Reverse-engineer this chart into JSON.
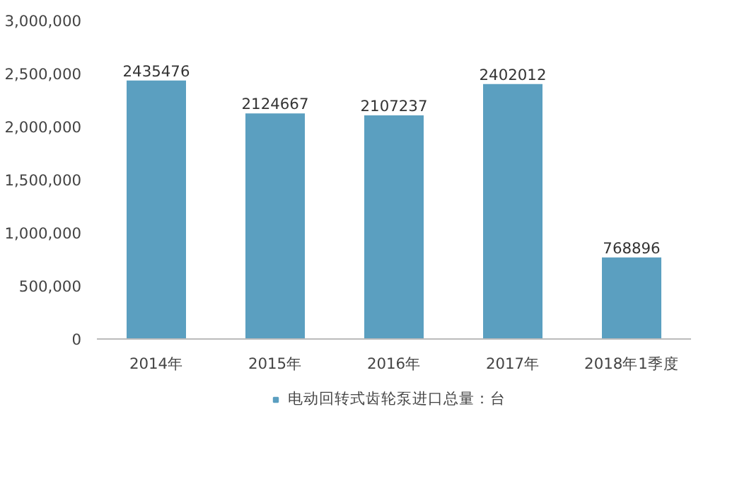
{
  "chart_data": {
    "type": "bar",
    "categories": [
      "2014年",
      "2015年",
      "2016年",
      "2017年",
      "2018年1季度"
    ],
    "series": [
      {
        "name": "电动回转式齿轮泵进口总量：台",
        "color": "#5b9fc0",
        "values": [
          2435476,
          2124667,
          2107237,
          2402012,
          768896
        ]
      }
    ],
    "ylim": [
      0,
      3000000
    ],
    "yticks": [
      {
        "value": 0,
        "label": "0"
      },
      {
        "value": 500000,
        "label": "500,000"
      },
      {
        "value": 1000000,
        "label": "1,000,000"
      },
      {
        "value": 1500000,
        "label": "1,500,000"
      },
      {
        "value": 2000000,
        "label": "2,000,000"
      },
      {
        "value": 2500000,
        "label": "2,500,000"
      },
      {
        "value": 3000000,
        "label": "3,000,000"
      }
    ],
    "data_labels": true,
    "grid": false,
    "legend": "bottom"
  }
}
